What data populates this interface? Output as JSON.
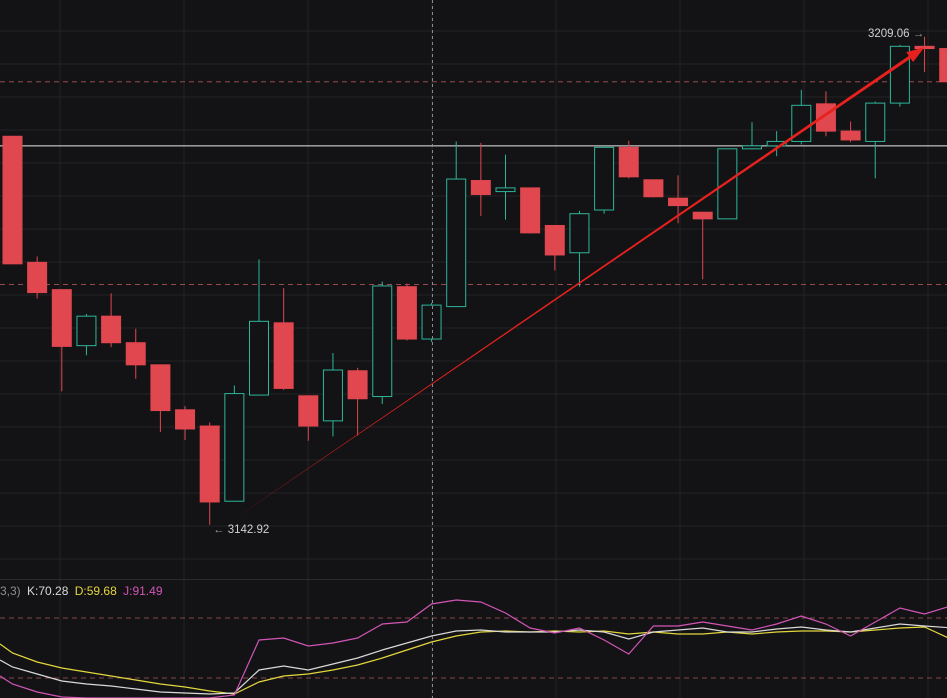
{
  "chart_data": {
    "type": "candlestick",
    "price_range": [
      3136.5,
      3213.0
    ],
    "high_label": {
      "text": "3209.06",
      "arrow": "→",
      "value": 3209.06
    },
    "low_label": {
      "text": "3142.92",
      "arrow": "←",
      "value": 3142.92
    },
    "horizontal_line": 3194.3,
    "dashed_levels": [
      3203.0,
      3175.5
    ],
    "annotation": {
      "type": "arrow",
      "color": "#e8201e",
      "from": [
        9,
        3143.7
      ],
      "to": [
        37,
        3207.7
      ]
    },
    "candles": [
      {
        "o": 3195.6,
        "h": 3195.6,
        "l": 3178.3,
        "c": 3178.3
      },
      {
        "o": 3178.5,
        "h": 3179.3,
        "l": 3173.6,
        "c": 3174.4
      },
      {
        "o": 3174.8,
        "h": 3174.8,
        "l": 3161.0,
        "c": 3167.1
      },
      {
        "o": 3167.2,
        "h": 3171.5,
        "l": 3165.9,
        "c": 3171.2
      },
      {
        "o": 3171.2,
        "h": 3174.3,
        "l": 3167.0,
        "c": 3167.6
      },
      {
        "o": 3167.6,
        "h": 3169.5,
        "l": 3162.7,
        "c": 3164.6
      },
      {
        "o": 3164.6,
        "h": 3164.6,
        "l": 3155.5,
        "c": 3158.4
      },
      {
        "o": 3158.5,
        "h": 3159.0,
        "l": 3154.4,
        "c": 3155.9
      },
      {
        "o": 3156.3,
        "h": 3156.8,
        "l": 3142.9,
        "c": 3146.0
      },
      {
        "o": 3146.1,
        "h": 3161.8,
        "l": 3146.1,
        "c": 3160.7
      },
      {
        "o": 3160.5,
        "h": 3178.9,
        "l": 3160.5,
        "c": 3170.5
      },
      {
        "o": 3170.3,
        "h": 3175.0,
        "l": 3161.2,
        "c": 3161.4
      },
      {
        "o": 3160.4,
        "h": 3160.4,
        "l": 3154.3,
        "c": 3156.3
      },
      {
        "o": 3157.0,
        "h": 3166.2,
        "l": 3154.9,
        "c": 3163.9
      },
      {
        "o": 3163.8,
        "h": 3164.2,
        "l": 3155.0,
        "c": 3160.0
      },
      {
        "o": 3160.3,
        "h": 3175.9,
        "l": 3159.3,
        "c": 3175.3
      },
      {
        "o": 3175.2,
        "h": 3175.6,
        "l": 3167.9,
        "c": 3168.1
      },
      {
        "o": 3168.1,
        "h": 3173.0,
        "l": 3167.7,
        "c": 3172.7
      },
      {
        "o": 3172.5,
        "h": 3194.9,
        "l": 3172.5,
        "c": 3189.8
      },
      {
        "o": 3189.6,
        "h": 3194.7,
        "l": 3184.8,
        "c": 3187.7
      },
      {
        "o": 3188.1,
        "h": 3193.1,
        "l": 3184.3,
        "c": 3188.6
      },
      {
        "o": 3188.6,
        "h": 3188.6,
        "l": 3182.4,
        "c": 3182.5
      },
      {
        "o": 3183.5,
        "h": 3183.5,
        "l": 3177.4,
        "c": 3179.5
      },
      {
        "o": 3179.8,
        "h": 3185.5,
        "l": 3175.2,
        "c": 3185.1
      },
      {
        "o": 3185.6,
        "h": 3194.3,
        "l": 3185.1,
        "c": 3194.1
      },
      {
        "o": 3194.1,
        "h": 3195.0,
        "l": 3189.9,
        "c": 3190.1
      },
      {
        "o": 3189.7,
        "h": 3189.7,
        "l": 3187.3,
        "c": 3187.4
      },
      {
        "o": 3187.2,
        "h": 3190.3,
        "l": 3183.8,
        "c": 3186.2
      },
      {
        "o": 3185.3,
        "h": 3185.3,
        "l": 3176.2,
        "c": 3184.4
      },
      {
        "o": 3184.4,
        "h": 3193.9,
        "l": 3184.4,
        "c": 3193.9
      },
      {
        "o": 3193.9,
        "h": 3197.5,
        "l": 3193.8,
        "c": 3194.3
      },
      {
        "o": 3194.3,
        "h": 3196.3,
        "l": 3192.9,
        "c": 3194.9
      },
      {
        "o": 3194.9,
        "h": 3201.9,
        "l": 3194.5,
        "c": 3199.8
      },
      {
        "o": 3200.0,
        "h": 3201.7,
        "l": 3195.6,
        "c": 3196.3
      },
      {
        "o": 3196.3,
        "h": 3197.6,
        "l": 3194.8,
        "c": 3195.1
      },
      {
        "o": 3194.9,
        "h": 3200.3,
        "l": 3189.9,
        "c": 3200.1
      },
      {
        "o": 3200.1,
        "h": 3208.0,
        "l": 3199.6,
        "c": 3207.8
      },
      {
        "o": 3207.8,
        "h": 3209.1,
        "l": 3204.3,
        "c": 3207.5
      },
      {
        "o": 3207.5,
        "h": 3207.5,
        "l": 3203.0,
        "c": 3203.0
      }
    ],
    "kdj": {
      "params": "3,3)",
      "K": {
        "label": "K:70.28",
        "color": "#d9d9d9"
      },
      "D": {
        "label": "D:59.68",
        "color": "#e3d63d"
      },
      "J": {
        "label": "J:91.49",
        "color": "#d255b6"
      },
      "range": [
        0,
        100
      ],
      "dashed_levels": [
        80,
        20
      ],
      "k_values": [
        31,
        24,
        17,
        14,
        12,
        9,
        6,
        5,
        4,
        5,
        28,
        32,
        28,
        34,
        40,
        48,
        55,
        62,
        67,
        68,
        66,
        66,
        66,
        68,
        66,
        59,
        66,
        68,
        70,
        66,
        66,
        69,
        71,
        68,
        66,
        70,
        74,
        72,
        70.28
      ],
      "d_values": [
        45,
        36,
        30,
        26,
        22,
        18,
        14,
        11,
        7,
        4,
        16,
        22,
        24,
        28,
        33,
        40,
        48,
        56,
        62,
        66,
        67,
        66,
        67,
        66,
        67,
        64,
        66,
        64,
        64,
        66,
        64,
        66,
        67,
        67,
        66,
        68,
        70,
        71,
        59.68
      ],
      "j_values": [
        14,
        6,
        1,
        0,
        0,
        0,
        0,
        0,
        0,
        3,
        58,
        60,
        52,
        55,
        60,
        74,
        76,
        94,
        98,
        96,
        85,
        70,
        65,
        70,
        58,
        44,
        72,
        72,
        76,
        72,
        68,
        74,
        82,
        74,
        62,
        76,
        90,
        84,
        91.49
      ]
    }
  }
}
